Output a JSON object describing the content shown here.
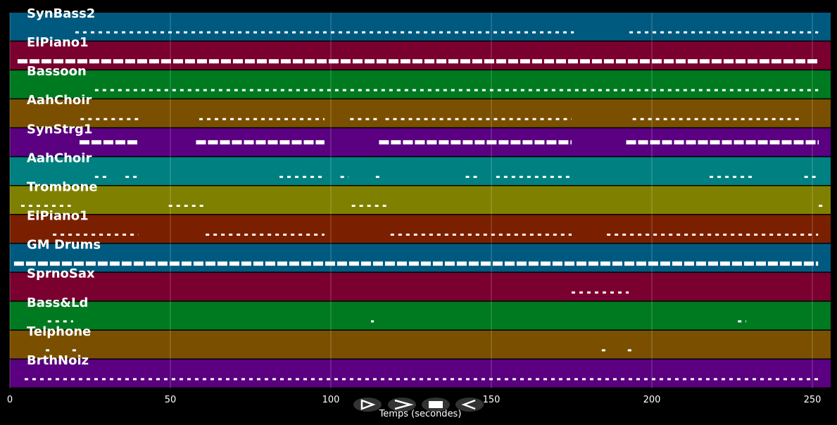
{
  "chart_data": {
    "type": "piano-roll",
    "xlabel": "Temps (secondes)",
    "xlim": [
      0,
      255.7
    ],
    "xticks": [
      0,
      50,
      100,
      150,
      200,
      250
    ],
    "grid": true,
    "tracks": [
      {
        "name": "SynBass2",
        "color": "#005a80",
        "spans": [
          [
            20.4,
            175.7
          ],
          [
            193,
            251.8
          ]
        ]
      },
      {
        "name": "ElPiano1",
        "color": "#7a0030",
        "spans": [
          [
            2.4,
            251.8
          ]
        ]
      },
      {
        "name": "Bassoon",
        "color": "#007a20",
        "spans": [
          [
            26.5,
            251.8
          ]
        ]
      },
      {
        "name": "AahChoir",
        "color": "#7a5000",
        "spans": [
          [
            22,
            40
          ],
          [
            59,
            98
          ],
          [
            106,
            115
          ],
          [
            117,
            175
          ],
          [
            194,
            246.5
          ]
        ]
      },
      {
        "name": "SynStrg1",
        "color": "#5a0080",
        "spans": [
          [
            21.7,
            40
          ],
          [
            58,
            98
          ],
          [
            115,
            175
          ],
          [
            192,
            252
          ]
        ]
      },
      {
        "name": "AahChoir",
        "color": "#008080",
        "spans": [
          [
            26.5,
            31
          ],
          [
            36,
            40
          ],
          [
            84,
            98
          ],
          [
            103,
            105.5
          ],
          [
            114,
            115.5
          ],
          [
            142,
            146
          ],
          [
            151.5,
            175
          ],
          [
            218,
            231.5
          ],
          [
            247.5,
            251.8
          ]
        ]
      },
      {
        "name": "Trombone",
        "color": "#808000",
        "spans": [
          [
            3.5,
            19
          ],
          [
            49.5,
            60.5
          ],
          [
            106.5,
            117.5
          ],
          [
            252,
            253.5
          ]
        ]
      },
      {
        "name": "ElPiano1",
        "color": "#7a2000",
        "spans": [
          [
            13.4,
            40
          ],
          [
            61,
            98
          ],
          [
            118.6,
            175
          ],
          [
            186,
            251.8
          ]
        ]
      },
      {
        "name": "GM Drums",
        "color": "#005a80",
        "spans": [
          [
            1.3,
            251.8
          ]
        ]
      },
      {
        "name": "SprnoSax",
        "color": "#7a0030",
        "spans": [
          [
            175,
            192.8
          ]
        ]
      },
      {
        "name": "Bass&Ld",
        "color": "#007a20",
        "spans": [
          [
            11.8,
            19.7
          ],
          [
            112.5,
            113.4
          ],
          [
            226.8,
            229.4
          ]
        ]
      },
      {
        "name": "Telphone",
        "color": "#7a5000",
        "spans": [
          [
            11.2,
            13.4
          ],
          [
            19.5,
            21.7
          ],
          [
            184.4,
            186
          ],
          [
            192.5,
            194.7
          ]
        ]
      },
      {
        "name": "BrthNoiz",
        "color": "#5a0080",
        "spans": [
          [
            4.6,
            251.8
          ]
        ]
      }
    ]
  }
}
